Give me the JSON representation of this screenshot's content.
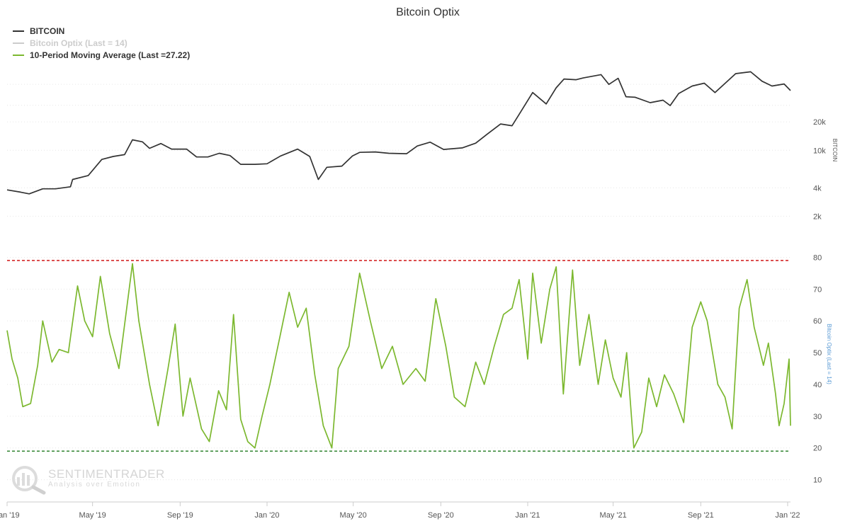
{
  "chart_data": {
    "type": "line",
    "title": "Bitcoin Optix",
    "legend": [
      {
        "label": "BITCOIN",
        "color": "#333333"
      },
      {
        "label": "Bitcoin Optix (Last = 14)",
        "color": "#cccccc"
      },
      {
        "label": "10-Period Moving Average (Last =27.22)",
        "color": "#7cb82f"
      }
    ],
    "x_ticks": [
      "Jan '19",
      "May '19",
      "Sep '19",
      "Jan '20",
      "May '20",
      "Sep '20",
      "Jan '21",
      "May '21",
      "Sep '21",
      "Jan '22"
    ],
    "x_range": [
      "2019-01-01",
      "2022-01-05"
    ],
    "upper": {
      "ylabel": "BITCOIN",
      "scale": "log",
      "y_ticks": [
        "2k",
        "4k",
        "10k",
        "20k"
      ],
      "ylim": [
        1500,
        80000
      ],
      "series": [
        {
          "name": "BITCOIN",
          "color": "#333333",
          "points": [
            [
              "2019-01-01",
              3800
            ],
            [
              "2019-01-20",
              3600
            ],
            [
              "2019-02-01",
              3450
            ],
            [
              "2019-02-20",
              3900
            ],
            [
              "2019-03-10",
              3900
            ],
            [
              "2019-03-31",
              4100
            ],
            [
              "2019-04-03",
              4900
            ],
            [
              "2019-04-25",
              5400
            ],
            [
              "2019-05-14",
              8000
            ],
            [
              "2019-05-30",
              8600
            ],
            [
              "2019-06-15",
              9000
            ],
            [
              "2019-06-26",
              12900
            ],
            [
              "2019-07-10",
              12300
            ],
            [
              "2019-07-20",
              10500
            ],
            [
              "2019-08-05",
              11800
            ],
            [
              "2019-08-20",
              10300
            ],
            [
              "2019-09-10",
              10300
            ],
            [
              "2019-09-24",
              8500
            ],
            [
              "2019-10-10",
              8500
            ],
            [
              "2019-10-26",
              9300
            ],
            [
              "2019-11-10",
              8800
            ],
            [
              "2019-11-25",
              7100
            ],
            [
              "2019-12-15",
              7100
            ],
            [
              "2020-01-01",
              7200
            ],
            [
              "2020-01-20",
              8700
            ],
            [
              "2020-02-13",
              10300
            ],
            [
              "2020-03-01",
              8600
            ],
            [
              "2020-03-13",
              4900
            ],
            [
              "2020-03-25",
              6600
            ],
            [
              "2020-04-15",
              6800
            ],
            [
              "2020-04-30",
              8700
            ],
            [
              "2020-05-10",
              9500
            ],
            [
              "2020-06-01",
              9600
            ],
            [
              "2020-06-20",
              9300
            ],
            [
              "2020-07-15",
              9200
            ],
            [
              "2020-07-30",
              11100
            ],
            [
              "2020-08-17",
              12200
            ],
            [
              "2020-09-05",
              10200
            ],
            [
              "2020-10-01",
              10600
            ],
            [
              "2020-10-20",
              11900
            ],
            [
              "2020-11-05",
              14800
            ],
            [
              "2020-11-24",
              19000
            ],
            [
              "2020-12-10",
              18200
            ],
            [
              "2020-12-20",
              24000
            ],
            [
              "2021-01-08",
              41000
            ],
            [
              "2021-01-27",
              31000
            ],
            [
              "2021-02-10",
              46000
            ],
            [
              "2021-02-21",
              57000
            ],
            [
              "2021-03-10",
              56000
            ],
            [
              "2021-03-20",
              58500
            ],
            [
              "2021-04-14",
              63500
            ],
            [
              "2021-04-25",
              50000
            ],
            [
              "2021-05-08",
              58000
            ],
            [
              "2021-05-19",
              37000
            ],
            [
              "2021-06-01",
              36500
            ],
            [
              "2021-06-22",
              32000
            ],
            [
              "2021-07-10",
              34000
            ],
            [
              "2021-07-20",
              29800
            ],
            [
              "2021-08-01",
              40000
            ],
            [
              "2021-08-20",
              48000
            ],
            [
              "2021-09-06",
              51500
            ],
            [
              "2021-09-21",
              41000
            ],
            [
              "2021-10-01",
              48000
            ],
            [
              "2021-10-20",
              65000
            ],
            [
              "2021-11-10",
              68000
            ],
            [
              "2021-11-26",
              54000
            ],
            [
              "2021-12-10",
              48000
            ],
            [
              "2021-12-27",
              50500
            ],
            [
              "2022-01-05",
              43000
            ]
          ]
        }
      ]
    },
    "lower": {
      "ylabel": "Bitcoin Optix (Last = 14)",
      "scale": "linear",
      "y_ticks": [
        10,
        20,
        30,
        40,
        50,
        60,
        70,
        80
      ],
      "ylim": [
        5,
        83
      ],
      "reference_lines": [
        {
          "value": 79,
          "color": "#cc0000"
        },
        {
          "value": 19,
          "color": "#1f7a1f"
        }
      ],
      "series": [
        {
          "name": "10-Period Moving Average (Last =27.22)",
          "color": "#7cb82f",
          "points": [
            [
              "2019-01-01",
              57
            ],
            [
              "2019-01-08",
              48
            ],
            [
              "2019-01-16",
              42
            ],
            [
              "2019-01-23",
              33
            ],
            [
              "2019-02-03",
              34
            ],
            [
              "2019-02-13",
              46
            ],
            [
              "2019-02-20",
              60
            ],
            [
              "2019-03-05",
              47
            ],
            [
              "2019-03-15",
              51
            ],
            [
              "2019-03-28",
              50
            ],
            [
              "2019-04-10",
              71
            ],
            [
              "2019-04-20",
              60
            ],
            [
              "2019-05-01",
              55
            ],
            [
              "2019-05-12",
              74
            ],
            [
              "2019-05-25",
              56
            ],
            [
              "2019-06-07",
              45
            ],
            [
              "2019-06-26",
              78
            ],
            [
              "2019-07-05",
              60
            ],
            [
              "2019-07-20",
              40
            ],
            [
              "2019-08-01",
              27
            ],
            [
              "2019-08-15",
              45
            ],
            [
              "2019-08-25",
              59
            ],
            [
              "2019-09-05",
              30
            ],
            [
              "2019-09-15",
              42
            ],
            [
              "2019-10-01",
              26
            ],
            [
              "2019-10-12",
              22
            ],
            [
              "2019-10-25",
              38
            ],
            [
              "2019-11-05",
              32
            ],
            [
              "2019-11-15",
              62
            ],
            [
              "2019-11-25",
              29
            ],
            [
              "2019-12-05",
              22
            ],
            [
              "2019-12-15",
              20
            ],
            [
              "2019-12-25",
              30
            ],
            [
              "2020-01-05",
              40
            ],
            [
              "2020-01-20",
              56
            ],
            [
              "2020-02-01",
              69
            ],
            [
              "2020-02-13",
              58
            ],
            [
              "2020-02-25",
              64
            ],
            [
              "2020-03-08",
              43
            ],
            [
              "2020-03-20",
              27
            ],
            [
              "2020-04-01",
              20
            ],
            [
              "2020-04-10",
              45
            ],
            [
              "2020-04-25",
              52
            ],
            [
              "2020-05-10",
              75
            ],
            [
              "2020-05-25",
              60
            ],
            [
              "2020-06-10",
              45
            ],
            [
              "2020-06-25",
              52
            ],
            [
              "2020-07-10",
              40
            ],
            [
              "2020-07-28",
              45
            ],
            [
              "2020-08-10",
              41
            ],
            [
              "2020-08-25",
              67
            ],
            [
              "2020-09-08",
              52
            ],
            [
              "2020-09-20",
              36
            ],
            [
              "2020-10-05",
              33
            ],
            [
              "2020-10-20",
              47
            ],
            [
              "2020-11-01",
              40
            ],
            [
              "2020-11-15",
              52
            ],
            [
              "2020-11-28",
              62
            ],
            [
              "2020-12-10",
              64
            ],
            [
              "2020-12-20",
              73
            ],
            [
              "2021-01-01",
              48
            ],
            [
              "2021-01-08",
              75
            ],
            [
              "2021-01-20",
              53
            ],
            [
              "2021-02-01",
              70
            ],
            [
              "2021-02-10",
              77
            ],
            [
              "2021-02-20",
              37
            ],
            [
              "2021-03-05",
              76
            ],
            [
              "2021-03-15",
              46
            ],
            [
              "2021-03-28",
              62
            ],
            [
              "2021-04-10",
              40
            ],
            [
              "2021-04-20",
              54
            ],
            [
              "2021-05-01",
              42
            ],
            [
              "2021-05-12",
              36
            ],
            [
              "2021-05-20",
              50
            ],
            [
              "2021-05-30",
              20
            ],
            [
              "2021-06-10",
              25
            ],
            [
              "2021-06-20",
              42
            ],
            [
              "2021-07-01",
              33
            ],
            [
              "2021-07-12",
              43
            ],
            [
              "2021-07-25",
              37
            ],
            [
              "2021-08-08",
              28
            ],
            [
              "2021-08-20",
              58
            ],
            [
              "2021-09-01",
              66
            ],
            [
              "2021-09-10",
              60
            ],
            [
              "2021-09-25",
              40
            ],
            [
              "2021-10-05",
              36
            ],
            [
              "2021-10-15",
              26
            ],
            [
              "2021-10-25",
              64
            ],
            [
              "2021-11-05",
              73
            ],
            [
              "2021-11-15",
              58
            ],
            [
              "2021-11-28",
              46
            ],
            [
              "2021-12-05",
              53
            ],
            [
              "2021-12-15",
              37
            ],
            [
              "2021-12-20",
              27
            ],
            [
              "2021-12-27",
              34
            ],
            [
              "2022-01-03",
              48
            ],
            [
              "2022-01-05",
              27
            ]
          ]
        }
      ]
    },
    "watermark": {
      "brand": "SENTIMENTRADER",
      "tagline": "Analysis over Emotion"
    }
  }
}
